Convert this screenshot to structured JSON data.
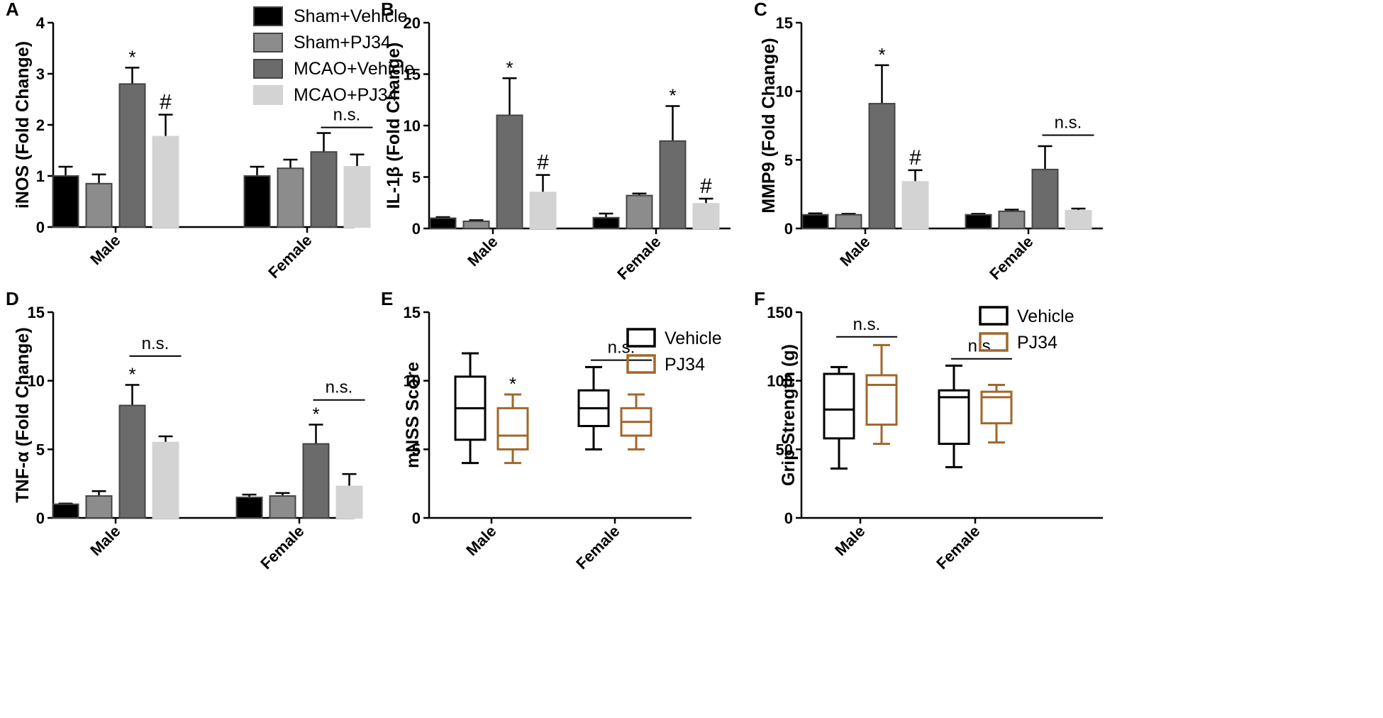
{
  "chart_data": [
    {
      "id": "A",
      "panel_label": "A",
      "type": "bar",
      "ylabel": "iNOS (Fold Change)",
      "ylim": [
        0,
        4
      ],
      "yticks": [
        0,
        1,
        2,
        3,
        4
      ],
      "categories": [
        "Male",
        "Female"
      ],
      "series": [
        {
          "name": "Sham+Vehicle",
          "color": "#000000",
          "values": [
            1.0,
            1.0
          ],
          "errors": [
            0.18,
            0.18
          ]
        },
        {
          "name": "Sham+PJ34",
          "color": "#8c8c8c",
          "values": [
            0.85,
            1.15
          ],
          "errors": [
            0.18,
            0.17
          ]
        },
        {
          "name": "MCAO+Vehicle",
          "color": "#6b6b6b",
          "values": [
            2.8,
            1.47
          ],
          "errors": [
            0.32,
            0.37
          ]
        },
        {
          "name": "MCAO+PJ34",
          "color": "#d3d3d3",
          "values": [
            1.77,
            1.18
          ],
          "errors": [
            0.43,
            0.24
          ]
        }
      ],
      "annotations": [
        {
          "cat": 0,
          "ser": 2,
          "text": "*"
        },
        {
          "cat": 0,
          "ser": 3,
          "text": "#"
        },
        {
          "cat": 1,
          "from": 2,
          "to": 3,
          "y": 1.95,
          "text": "n.s."
        }
      ],
      "legend": {
        "position": "top-right"
      }
    },
    {
      "id": "B",
      "panel_label": "B",
      "type": "bar",
      "ylabel": "IL-1β (Fold Change)",
      "ylim": [
        0,
        20
      ],
      "yticks": [
        0,
        5,
        10,
        15,
        20
      ],
      "categories": [
        "Male",
        "Female"
      ],
      "series": [
        {
          "name": "Sham+Vehicle",
          "color": "#000000",
          "values": [
            1.0,
            1.05
          ],
          "errors": [
            0.1,
            0.4
          ]
        },
        {
          "name": "Sham+PJ34",
          "color": "#8c8c8c",
          "values": [
            0.7,
            3.2
          ],
          "errors": [
            0.1,
            0.2
          ]
        },
        {
          "name": "MCAO+Vehicle",
          "color": "#6b6b6b",
          "values": [
            11.0,
            8.5
          ],
          "errors": [
            3.6,
            3.4
          ]
        },
        {
          "name": "MCAO+PJ34",
          "color": "#d3d3d3",
          "values": [
            3.5,
            2.4
          ],
          "errors": [
            1.7,
            0.5
          ]
        }
      ],
      "annotations": [
        {
          "cat": 0,
          "ser": 2,
          "text": "*"
        },
        {
          "cat": 0,
          "ser": 3,
          "text": "#"
        },
        {
          "cat": 1,
          "ser": 2,
          "text": "*"
        },
        {
          "cat": 1,
          "ser": 3,
          "text": "#"
        }
      ]
    },
    {
      "id": "C",
      "panel_label": "C",
      "type": "bar",
      "ylabel": "MMP9 (Fold Change)",
      "ylim": [
        0,
        15
      ],
      "yticks": [
        0,
        5,
        10,
        15
      ],
      "categories": [
        "Male",
        "Female"
      ],
      "series": [
        {
          "name": "Sham+Vehicle",
          "color": "#000000",
          "values": [
            1.0,
            1.0
          ],
          "errors": [
            0.1,
            0.07
          ]
        },
        {
          "name": "Sham+PJ34",
          "color": "#8c8c8c",
          "values": [
            1.0,
            1.25
          ],
          "errors": [
            0.07,
            0.12
          ]
        },
        {
          "name": "MCAO+Vehicle",
          "color": "#6b6b6b",
          "values": [
            9.1,
            4.3
          ],
          "errors": [
            2.8,
            1.7
          ]
        },
        {
          "name": "MCAO+PJ34",
          "color": "#d3d3d3",
          "values": [
            3.4,
            1.3
          ],
          "errors": [
            0.85,
            0.15
          ]
        }
      ],
      "annotations": [
        {
          "cat": 0,
          "ser": 2,
          "text": "*"
        },
        {
          "cat": 0,
          "ser": 3,
          "text": "#"
        },
        {
          "cat": 1,
          "from": 2,
          "to": 3,
          "y": 6.8,
          "text": "n.s."
        }
      ]
    },
    {
      "id": "D",
      "panel_label": "D",
      "type": "bar",
      "ylabel": "TNF-α (Fold Change)",
      "ylim": [
        0,
        15
      ],
      "yticks": [
        0,
        5,
        10,
        15
      ],
      "categories": [
        "Male",
        "Female"
      ],
      "series": [
        {
          "name": "Sham+Vehicle",
          "color": "#000000",
          "values": [
            1.0,
            1.5
          ],
          "errors": [
            0.05,
            0.2
          ]
        },
        {
          "name": "Sham+PJ34",
          "color": "#8c8c8c",
          "values": [
            1.6,
            1.6
          ],
          "errors": [
            0.35,
            0.22
          ]
        },
        {
          "name": "MCAO+Vehicle",
          "color": "#6b6b6b",
          "values": [
            8.2,
            5.4
          ],
          "errors": [
            1.5,
            1.4
          ]
        },
        {
          "name": "MCAO+PJ34",
          "color": "#d3d3d3",
          "values": [
            5.5,
            2.3
          ],
          "errors": [
            0.45,
            0.9
          ]
        }
      ],
      "annotations": [
        {
          "cat": 0,
          "ser": 2,
          "text": "*"
        },
        {
          "cat": 1,
          "ser": 2,
          "text": "*"
        },
        {
          "cat": 0,
          "from": 2,
          "to": 3,
          "y": 11.8,
          "text": "n.s."
        },
        {
          "cat": 1,
          "from": 2,
          "to": 3,
          "y": 8.6,
          "text": "n.s."
        }
      ]
    },
    {
      "id": "E",
      "panel_label": "E",
      "type": "box",
      "ylabel": "mNSS Score",
      "ylim": [
        0,
        15
      ],
      "yticks": [
        0,
        5,
        10,
        15
      ],
      "categories": [
        "Male",
        "Female"
      ],
      "series": [
        {
          "name": "Vehicle",
          "color": "#000000",
          "boxes": [
            {
              "min": 4,
              "q1": 5.7,
              "median": 8,
              "q3": 10.3,
              "max": 12
            },
            {
              "min": 5,
              "q1": 6.7,
              "median": 8,
              "q3": 9.3,
              "max": 11
            }
          ]
        },
        {
          "name": "PJ34",
          "color": "#a0672a",
          "boxes": [
            {
              "min": 4,
              "q1": 5,
              "median": 6,
              "q3": 8,
              "max": 9
            },
            {
              "min": 5,
              "q1": 6,
              "median": 7,
              "q3": 8,
              "max": 9
            }
          ]
        }
      ],
      "annotations": [
        {
          "cat": 0,
          "ser": 1,
          "text": "*"
        },
        {
          "cat": 1,
          "from": 0,
          "to": 1,
          "y": 11.5,
          "text": "n.s."
        }
      ],
      "legend": {
        "position": "top-right"
      }
    },
    {
      "id": "F",
      "panel_label": "F",
      "type": "box",
      "ylabel": "Grip Strength  (g)",
      "ylim": [
        0,
        150
      ],
      "yticks": [
        0,
        50,
        100,
        150
      ],
      "categories": [
        "Male",
        "Female"
      ],
      "series": [
        {
          "name": "Vehicle",
          "color": "#000000",
          "boxes": [
            {
              "min": 36,
              "q1": 58,
              "median": 79,
              "q3": 105,
              "max": 110
            },
            {
              "min": 37,
              "q1": 54,
              "median": 88,
              "q3": 93,
              "max": 111
            }
          ]
        },
        {
          "name": "PJ34",
          "color": "#a0672a",
          "boxes": [
            {
              "min": 54,
              "q1": 68,
              "median": 97,
              "q3": 104,
              "max": 126
            },
            {
              "min": 55,
              "q1": 69,
              "median": 88,
              "q3": 92,
              "max": 97
            }
          ]
        }
      ],
      "annotations": [
        {
          "cat": 0,
          "from": 0,
          "to": 1,
          "y": 132,
          "text": "n.s."
        },
        {
          "cat": 1,
          "from": 0,
          "to": 1,
          "y": 116,
          "text": "n.s."
        }
      ],
      "legend": {
        "position": "top-right"
      }
    }
  ]
}
